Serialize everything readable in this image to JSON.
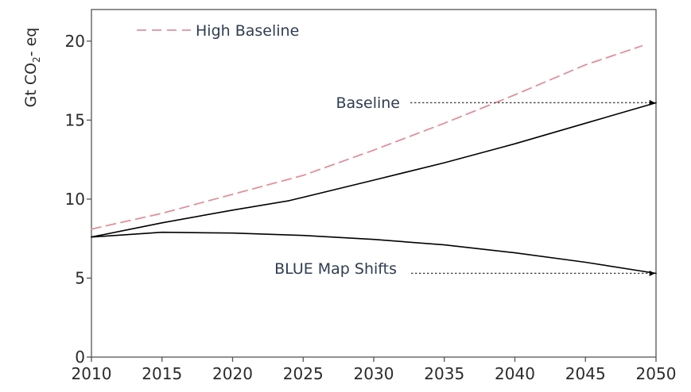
{
  "chart_data": {
    "type": "line",
    "title": "",
    "xlabel": "",
    "ylabel": "Gt CO₂- eq",
    "ylabel_parts": {
      "before": "Gt CO",
      "sub": "2",
      "after": "- eq"
    },
    "xlim": [
      2010,
      2050
    ],
    "ylim": [
      0,
      22
    ],
    "x_ticks": [
      "2010",
      "2015",
      "2020",
      "2025",
      "2030",
      "2035",
      "2040",
      "2045",
      "2050"
    ],
    "y_ticks": [
      "0",
      "5",
      "10",
      "15",
      "20"
    ],
    "grid": false,
    "legend": {
      "placement": "top-left",
      "label": "High Baseline"
    },
    "series": [
      {
        "name": "High Baseline",
        "style": "dashed",
        "color": "#e0909a",
        "x": [
          2010,
          2015,
          2020,
          2025,
          2030,
          2035,
          2040,
          2045,
          2049
        ],
        "y": [
          8.1,
          9.1,
          10.3,
          11.5,
          13.1,
          14.8,
          16.6,
          18.5,
          19.7
        ]
      },
      {
        "name": "Baseline",
        "style": "solid",
        "color": "#000000",
        "x": [
          2010,
          2015,
          2020,
          2024,
          2030,
          2035,
          2040,
          2045,
          2050
        ],
        "y": [
          7.6,
          8.5,
          9.3,
          9.9,
          11.2,
          12.3,
          13.5,
          14.8,
          16.1
        ]
      },
      {
        "name": "BLUE Map Shifts",
        "style": "solid",
        "color": "#000000",
        "x": [
          2010,
          2015,
          2020,
          2025,
          2030,
          2035,
          2040,
          2045,
          2050
        ],
        "y": [
          7.6,
          7.9,
          7.85,
          7.7,
          7.45,
          7.1,
          6.6,
          6.0,
          5.3
        ]
      }
    ],
    "annotations": [
      {
        "text": "Baseline",
        "points_to": [
          2050,
          16.1
        ]
      },
      {
        "text": "BLUE Map Shifts",
        "points_to": [
          2050,
          5.3
        ]
      }
    ],
    "colors": {
      "axis": "#555555",
      "high_baseline": "#e0909a",
      "line": "#000000",
      "annotation_text": "#2f3d52"
    }
  }
}
